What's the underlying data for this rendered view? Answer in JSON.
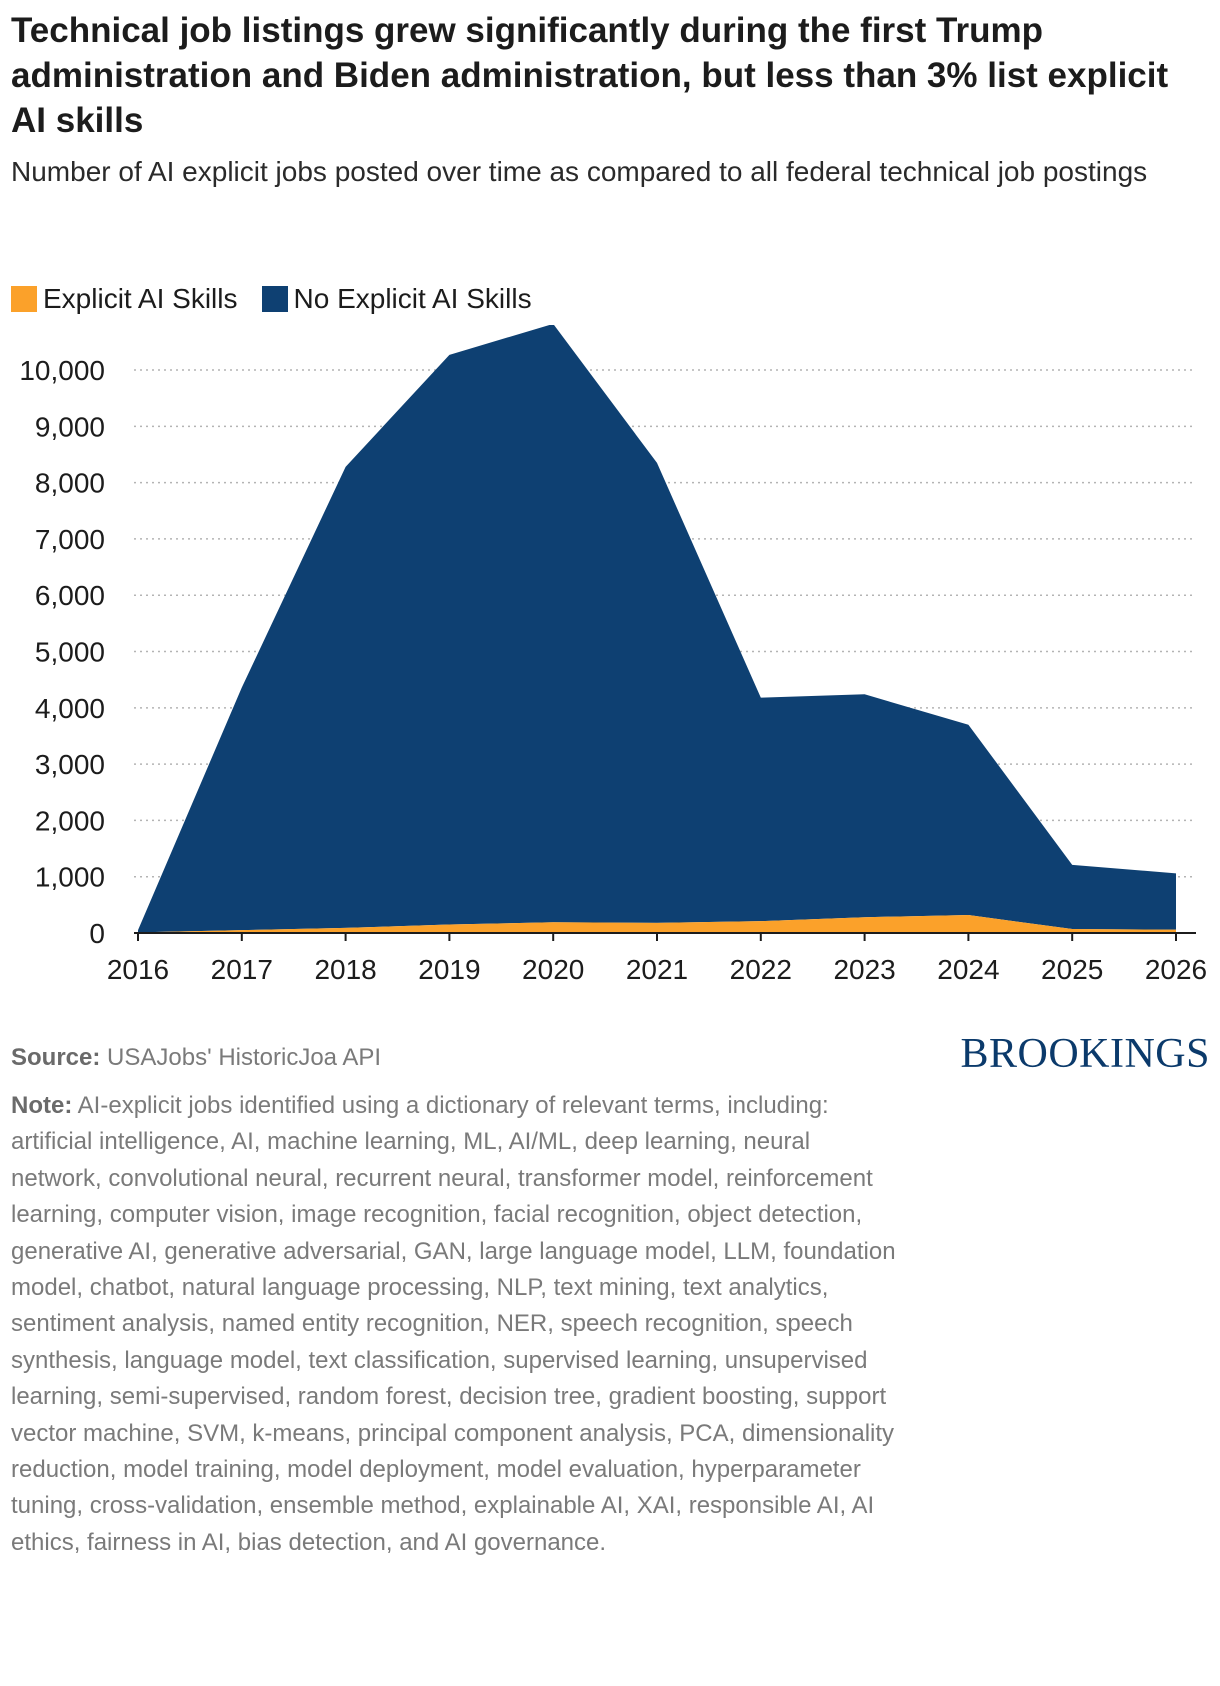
{
  "header": {
    "title": "Technical job listings grew significantly during the first Trump administration and Biden administration, but less than 3% list explicit AI skills",
    "subtitle": "Number of AI explicit jobs posted over time as compared to all federal technical job postings"
  },
  "colors": {
    "explicit": "#fba12a",
    "no_explicit": "#0e4072",
    "grid": "#b4b4b4",
    "axis": "#1c1c1c"
  },
  "chart_data": {
    "type": "area",
    "stacked": true,
    "title": "Technical job listings grew significantly during the first Trump administration and Biden administration, but less than 3% list explicit AI skills",
    "subtitle": "Number of AI explicit jobs posted over time as compared to all federal technical job postings",
    "xlabel": "",
    "ylabel": "",
    "x": [
      2016,
      2017,
      2018,
      2019,
      2020,
      2021,
      2022,
      2023,
      2024,
      2025,
      2026
    ],
    "xticks": [
      "2016",
      "2017",
      "2018",
      "2019",
      "2020",
      "2021",
      "2022",
      "2023",
      "2024",
      "2025",
      "2026"
    ],
    "yticks": [
      0,
      1000,
      2000,
      3000,
      4000,
      5000,
      6000,
      7000,
      8000,
      9000,
      10000
    ],
    "ytick_labels": [
      "0",
      "1,000",
      "2,000",
      "3,000",
      "4,000",
      "5,000",
      "6,000",
      "7,000",
      "8,000",
      "9,000",
      "10,000"
    ],
    "ylim": [
      0,
      10800
    ],
    "grid": true,
    "legend_position": "top-left",
    "series": [
      {
        "name": "Explicit AI Skills",
        "values": [
          10,
          50,
          90,
          150,
          190,
          180,
          210,
          280,
          320,
          70,
          60
        ]
      },
      {
        "name": "No Explicit AI Skills",
        "values": [
          40,
          4310,
          8190,
          10120,
          10630,
          8170,
          3970,
          3960,
          3380,
          1140,
          1000
        ]
      }
    ]
  },
  "footer": {
    "source_label": "Source:",
    "source_text": "USAJobs' HistoricJoa API",
    "note_label": "Note:",
    "note_text": "AI-explicit jobs identified using a dictionary of relevant terms, including: artificial intelligence, AI, machine learning, ML, AI/ML, deep learning, neural network, convolutional neural, recurrent neural, transformer model, reinforcement learning, computer vision, image recognition, facial recognition, object detection, generative AI, generative adversarial, GAN, large language model, LLM, foundation model, chatbot, natural language processing, NLP, text mining, text analytics, sentiment analysis, named entity recognition, NER, speech recognition, speech synthesis, language model, text classification, supervised learning, unsupervised learning, semi-supervised, random forest, decision tree, gradient boosting, support vector machine, SVM, k-means, principal component analysis, PCA, dimensionality reduction, model training, model deployment, model evaluation, hyperparameter tuning, cross-validation, ensemble method, explainable AI, XAI, responsible AI, AI ethics, fairness in AI, bias detection, and AI governance.",
    "logo": "BROOKINGS"
  }
}
